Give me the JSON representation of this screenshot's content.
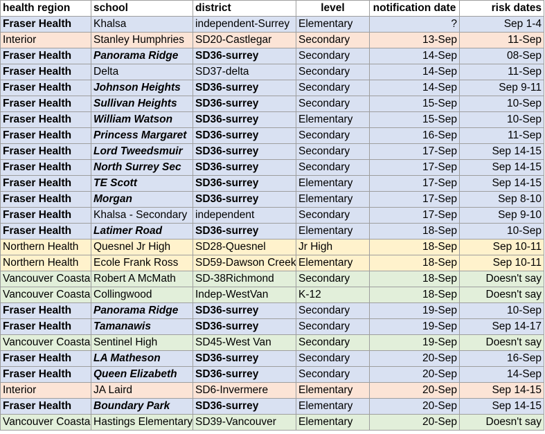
{
  "headers": [
    "health region",
    "school",
    "district",
    "level",
    "notification date",
    "risk dates"
  ],
  "rows": [
    {
      "region": "Fraser Health",
      "school": "Khalsa",
      "district": "independent-Surrey",
      "level": "Elementary",
      "notified": "?",
      "risk": "Sep 1-4",
      "color": "fraser",
      "rb": true,
      "sb": false,
      "db": false
    },
    {
      "region": "Interior",
      "school": "Stanley Humphries",
      "district": "SD20-Castlegar",
      "level": "Secondary",
      "notified": "13-Sep",
      "risk": "11-Sep",
      "color": "interior",
      "rb": false,
      "sb": false,
      "db": false
    },
    {
      "region": "Fraser Health",
      "school": "Panorama Ridge",
      "district": "SD36-surrey",
      "level": "Secondary",
      "notified": "14-Sep",
      "risk": "08-Sep",
      "color": "fraser",
      "rb": true,
      "sb": true,
      "db": true
    },
    {
      "region": "Fraser Health",
      "school": "Delta",
      "district": "SD37-delta",
      "level": "Secondary",
      "notified": "14-Sep",
      "risk": "11-Sep",
      "color": "fraser",
      "rb": true,
      "sb": false,
      "db": false
    },
    {
      "region": "Fraser Health",
      "school": "Johnson Heights",
      "district": "SD36-surrey",
      "level": "Secondary",
      "notified": "14-Sep",
      "risk": "Sep 9-11",
      "color": "fraser",
      "rb": true,
      "sb": true,
      "db": true
    },
    {
      "region": "Fraser Health",
      "school": "Sullivan Heights",
      "district": "SD36-surrey",
      "level": "Secondary",
      "notified": "15-Sep",
      "risk": "10-Sep",
      "color": "fraser",
      "rb": true,
      "sb": true,
      "db": true
    },
    {
      "region": "Fraser Health",
      "school": "William Watson",
      "district": "SD36-surrey",
      "level": "Elementary",
      "notified": "15-Sep",
      "risk": "10-Sep",
      "color": "fraser",
      "rb": true,
      "sb": true,
      "db": true
    },
    {
      "region": "Fraser Health",
      "school": "Princess Margaret",
      "district": "SD36-surrey",
      "level": "Secondary",
      "notified": "16-Sep",
      "risk": "11-Sep",
      "color": "fraser",
      "rb": true,
      "sb": true,
      "db": true
    },
    {
      "region": "Fraser Health",
      "school": "Lord Tweedsmuir",
      "district": "SD36-surrey",
      "level": "Secondary",
      "notified": "17-Sep",
      "risk": "Sep 14-15",
      "color": "fraser",
      "rb": true,
      "sb": true,
      "db": true
    },
    {
      "region": "Fraser Health",
      "school": "North Surrey Sec",
      "district": "SD36-surrey",
      "level": "Secondary",
      "notified": "17-Sep",
      "risk": "Sep 14-15",
      "color": "fraser",
      "rb": true,
      "sb": true,
      "db": true
    },
    {
      "region": "Fraser Health",
      "school": "TE Scott",
      "district": "SD36-surrey",
      "level": "Elementary",
      "notified": "17-Sep",
      "risk": "Sep 14-15",
      "color": "fraser",
      "rb": true,
      "sb": true,
      "db": true
    },
    {
      "region": "Fraser Health",
      "school": "Morgan",
      "district": "SD36-surrey",
      "level": "Elementary",
      "notified": "17-Sep",
      "risk": "Sep 8-10",
      "color": "fraser",
      "rb": true,
      "sb": true,
      "db": true
    },
    {
      "region": "Fraser Health",
      "school": "Khalsa - Secondary",
      "district": "independent",
      "level": "Secondary",
      "notified": "17-Sep",
      "risk": "Sep 9-10",
      "color": "fraser",
      "rb": true,
      "sb": false,
      "db": false
    },
    {
      "region": "Fraser Health",
      "school": "Latimer Road",
      "district": "SD36-surrey",
      "level": "Elementary",
      "notified": "18-Sep",
      "risk": "10-Sep",
      "color": "fraser",
      "rb": true,
      "sb": true,
      "db": true
    },
    {
      "region": "Northern Health",
      "school": "Quesnel Jr High",
      "district": "SD28-Quesnel",
      "level": "Jr High",
      "notified": "18-Sep",
      "risk": "Sep 10-11",
      "color": "northern",
      "rb": false,
      "sb": false,
      "db": false
    },
    {
      "region": "Northern Health",
      "school": "Ecole Frank Ross",
      "district": "SD59-Dawson Creek",
      "level": "Elementary",
      "notified": "18-Sep",
      "risk": "Sep 10-11",
      "color": "northern",
      "rb": false,
      "sb": false,
      "db": false
    },
    {
      "region": "Vancouver Coastal",
      "school": "Robert A McMath",
      "district": "SD-38Richmond",
      "level": "Secondary",
      "notified": "18-Sep",
      "risk": "Doesn't say",
      "color": "vancouver",
      "rb": false,
      "sb": false,
      "db": false
    },
    {
      "region": "Vancouver Coastal",
      "school": "Collingwood",
      "district": "Indep-WestVan",
      "level": "K-12",
      "notified": "18-Sep",
      "risk": "Doesn't say",
      "color": "vancouver",
      "rb": false,
      "sb": false,
      "db": false
    },
    {
      "region": "Fraser Health",
      "school": "Panorama Ridge",
      "district": "SD36-surrey",
      "level": "Secondary",
      "notified": "19-Sep",
      "risk": "10-Sep",
      "color": "fraser",
      "rb": true,
      "sb": true,
      "db": true
    },
    {
      "region": "Fraser Health",
      "school": "Tamanawis",
      "district": "SD36-surrey",
      "level": "Secondary",
      "notified": "19-Sep",
      "risk": "Sep 14-17",
      "color": "fraser",
      "rb": true,
      "sb": true,
      "db": true
    },
    {
      "region": "Vancouver Coastal",
      "school": "Sentinel High",
      "district": "SD45-West Van",
      "level": "Secondary",
      "notified": "19-Sep",
      "risk": "Doesn't say",
      "color": "vancouver",
      "rb": false,
      "sb": false,
      "db": false
    },
    {
      "region": "Fraser Health",
      "school": "LA Matheson",
      "district": "SD36-surrey",
      "level": "Secondary",
      "notified": "20-Sep",
      "risk": "16-Sep",
      "color": "fraser",
      "rb": true,
      "sb": true,
      "db": true
    },
    {
      "region": "Fraser Health",
      "school": "Queen Elizabeth",
      "district": "SD36-surrey",
      "level": "Secondary",
      "notified": "20-Sep",
      "risk": "14-Sep",
      "color": "fraser",
      "rb": true,
      "sb": true,
      "db": true
    },
    {
      "region": "Interior",
      "school": "JA Laird",
      "district": "SD6-Invermere",
      "level": "Elementary",
      "notified": "20-Sep",
      "risk": "Sep 14-15",
      "color": "interior",
      "rb": false,
      "sb": false,
      "db": false
    },
    {
      "region": "Fraser Health",
      "school": "Boundary Park",
      "district": "SD36-surrey",
      "level": "Elementary",
      "notified": "20-Sep",
      "risk": "Sep 14-15",
      "color": "fraser",
      "rb": true,
      "sb": true,
      "db": true
    },
    {
      "region": "Vancouver Coastal",
      "school": "Hastings Elementary",
      "district": "SD39-Vancouver",
      "level": "Elementary",
      "notified": "20-Sep",
      "risk": "Doesn't say",
      "color": "vancouver",
      "rb": false,
      "sb": false,
      "db": false
    }
  ]
}
